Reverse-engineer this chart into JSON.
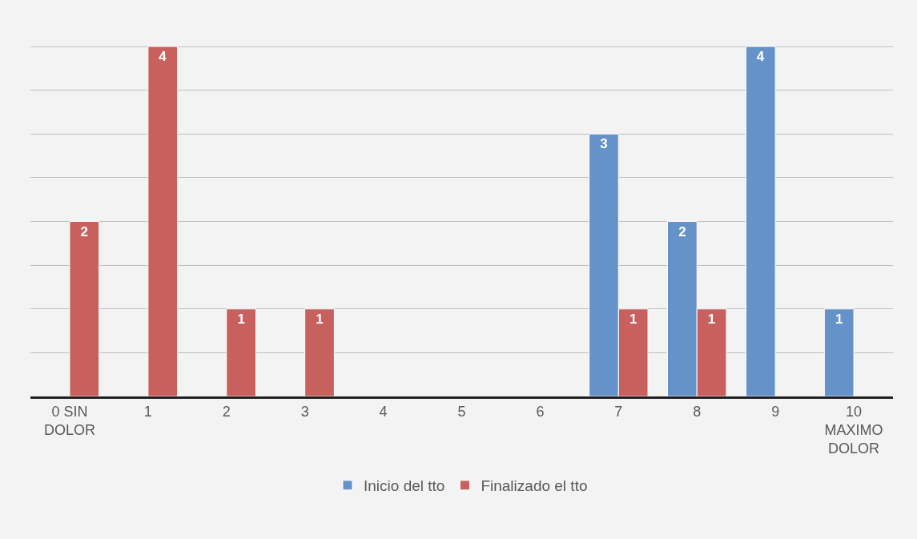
{
  "chart_data": {
    "type": "bar",
    "categories": [
      "0 SIN DOLOR",
      "1",
      "2",
      "3",
      "4",
      "5",
      "6",
      "7",
      "8",
      "9",
      "10 MAXIMO DOLOR"
    ],
    "series": [
      {
        "name": "Inicio del tto",
        "color": "#6593c9",
        "values": [
          null,
          null,
          null,
          null,
          null,
          null,
          null,
          3,
          2,
          4,
          1
        ]
      },
      {
        "name": "Finalizado el tto",
        "color": "#c8605e",
        "values": [
          2,
          4,
          1,
          1,
          null,
          null,
          null,
          1,
          1,
          null,
          null
        ]
      }
    ],
    "tick_labels": "x",
    "grid": "y",
    "data_labels": true,
    "legend": "bottom"
  }
}
